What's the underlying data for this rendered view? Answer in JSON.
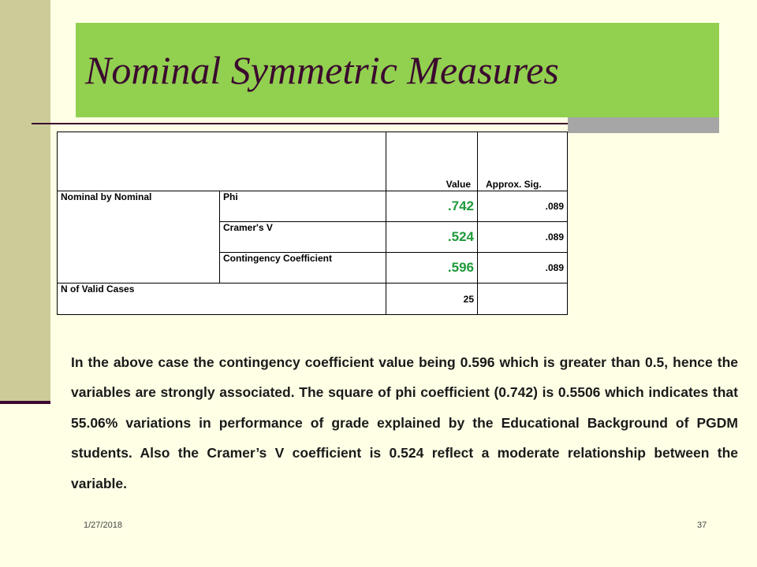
{
  "slide": {
    "title": "Nominal Symmetric Measures",
    "footer_date": "1/27/2018",
    "slide_number": "37"
  },
  "colors": {
    "background": "#FFFFE6",
    "title_band": "#92D050",
    "left_band": "#CCCC99",
    "title_text": "#3B0A2E",
    "value_text": "#1F9A3A"
  },
  "table": {
    "headers": {
      "value": "Value",
      "sig": "Approx. Sig."
    },
    "group_label": "Nominal by Nominal",
    "rows": [
      {
        "label": "Phi",
        "value": ".742",
        "sig": ".089"
      },
      {
        "label": "Cramer's V",
        "value": ".524",
        "sig": ".089"
      },
      {
        "label": "Contingency Coefficient",
        "value": ".596",
        "sig": ".089"
      }
    ],
    "n_label": "N of Valid Cases",
    "n_value": "25"
  },
  "paragraph": "In the above case the contingency coefficient value being 0.596 which is greater than 0.5, hence the variables are strongly associated. The square of phi coefficient (0.742) is 0.5506 which indicates that 55.06% variations in performance of grade explained by the Educational Background of PGDM students. Also the Cramer’s V coefficient is 0.524 reflect a moderate relationship between the variable."
}
